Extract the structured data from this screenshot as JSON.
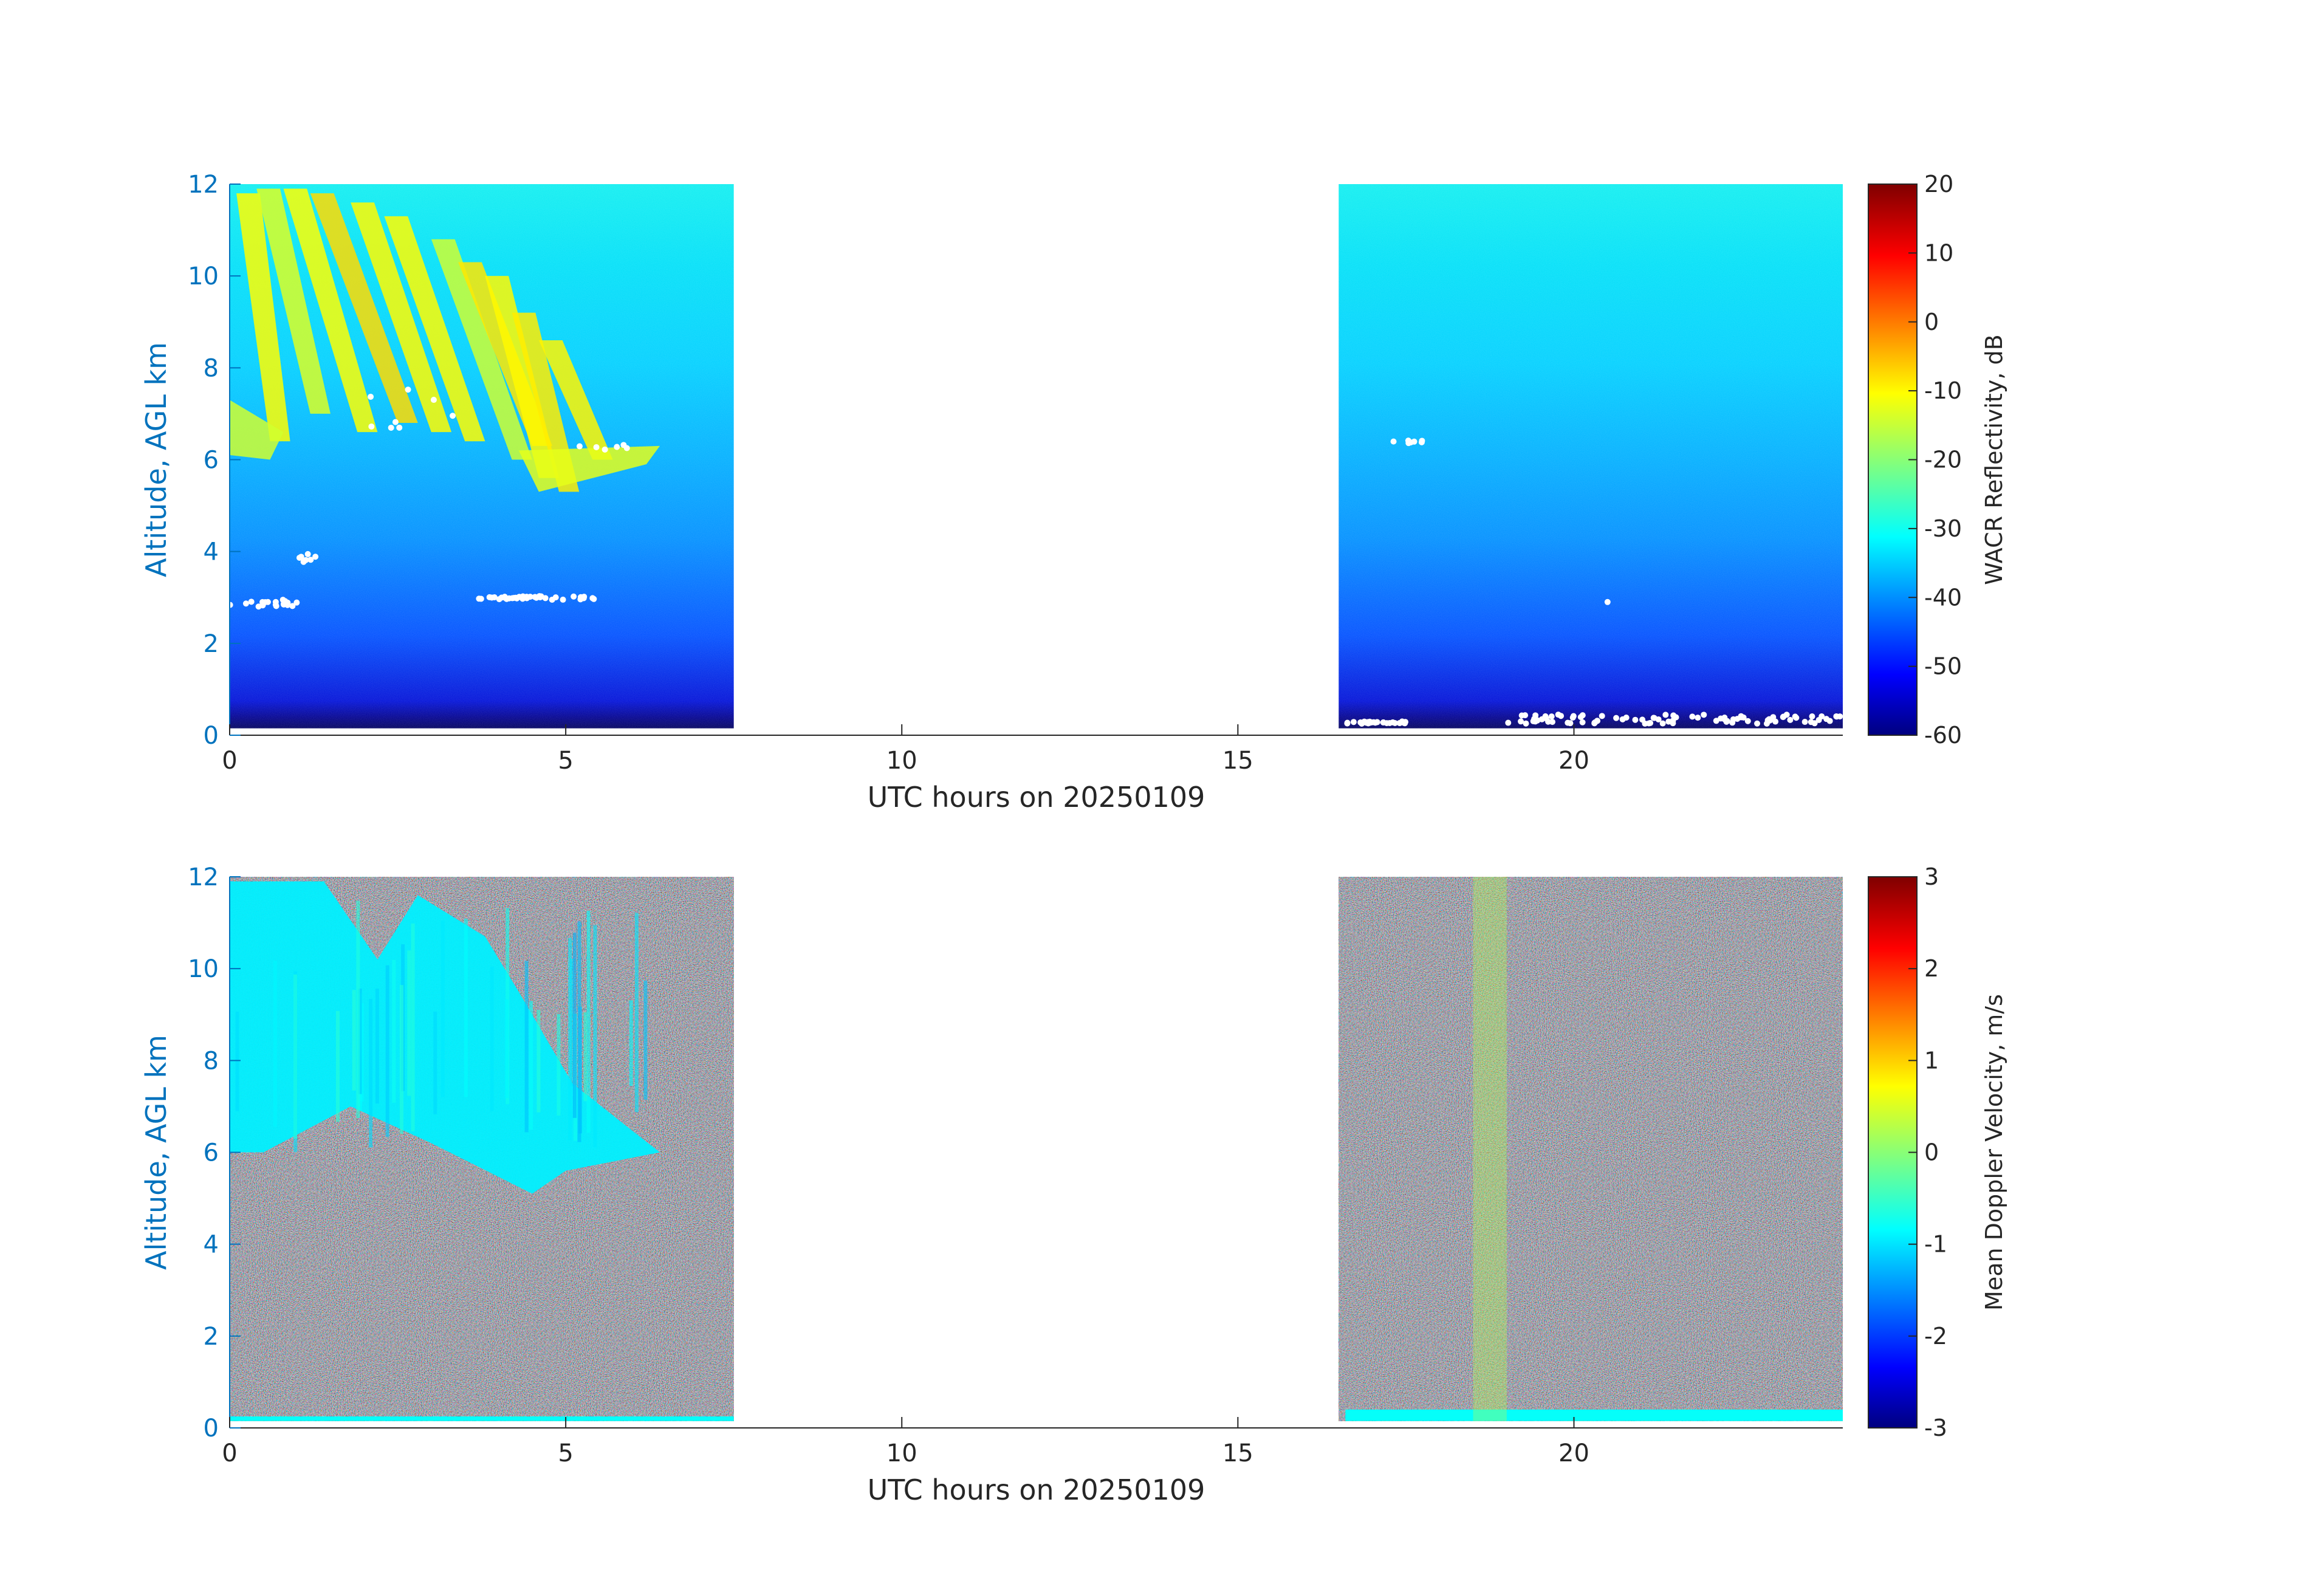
{
  "chart_data": [
    {
      "type": "heatmap",
      "panel": "top",
      "xlabel": "UTC hours on 20250109",
      "ylabel": "Altitude, AGL km",
      "xlim": [
        0,
        24
      ],
      "ylim": [
        0,
        12
      ],
      "xticks": [
        0,
        5,
        10,
        15,
        20
      ],
      "yticks": [
        0,
        2,
        4,
        6,
        8,
        10,
        12
      ],
      "colorbar": {
        "label": "WACR Reflectivity, dB",
        "range": [
          -60,
          20
        ],
        "ticks": [
          20,
          10,
          0,
          -10,
          -20,
          -30,
          -40,
          -50,
          -60
        ],
        "colormap": "jet"
      },
      "data_segments": [
        {
          "x_start": 0,
          "x_end": 7.5,
          "y_start": 0.15,
          "y_end": 12
        },
        {
          "x_start": 16.5,
          "x_end": 24,
          "y_start": 0.15,
          "y_end": 12
        }
      ],
      "background_profile": [
        {
          "altitude": 0.15,
          "value": -60
        },
        {
          "altitude": 0.6,
          "value": -55
        },
        {
          "altitude": 2,
          "value": -48
        },
        {
          "altitude": 4,
          "value": -42
        },
        {
          "altitude": 6,
          "value": -38
        },
        {
          "altitude": 8,
          "value": -34
        },
        {
          "altitude": 10,
          "value": -31
        },
        {
          "altitude": 12,
          "value": -29
        }
      ],
      "features": [
        {
          "description": "Cirrus fall streaks",
          "x_range": [
            0,
            6.4
          ],
          "y_range": [
            5.1,
            12
          ],
          "value_range": [
            -20,
            -8
          ]
        },
        {
          "description": "Thin cloud layer",
          "x_range": [
            0,
            0.8
          ],
          "y_range": [
            6,
            7.5
          ],
          "value_range": [
            -18,
            -12
          ]
        },
        {
          "description": "Low scattered cloud points",
          "x_range": [
            0,
            6
          ],
          "y_range": [
            2.8,
            4
          ],
          "value": "white"
        },
        {
          "description": "Near-surface layer",
          "x_range": [
            16.5,
            24
          ],
          "y_range": [
            0.15,
            0.5
          ],
          "value": "white"
        }
      ]
    },
    {
      "type": "heatmap",
      "panel": "bottom",
      "xlabel": "UTC hours on 20250109",
      "ylabel": "Altitude, AGL km",
      "xlim": [
        0,
        24
      ],
      "ylim": [
        0,
        12
      ],
      "xticks": [
        0,
        5,
        10,
        15,
        20
      ],
      "yticks": [
        0,
        2,
        4,
        6,
        8,
        10,
        12
      ],
      "colorbar": {
        "label": "Mean Doppler Velocity, m/s",
        "range": [
          -3,
          3
        ],
        "ticks": [
          3,
          2,
          1,
          0,
          -1,
          -2,
          -3
        ],
        "colormap": "jet"
      },
      "data_segments": [
        {
          "x_start": 0,
          "x_end": 7.5,
          "y_start": 0.15,
          "y_end": 12
        },
        {
          "x_start": 16.5,
          "x_end": 24,
          "y_start": 0.15,
          "y_end": 12
        }
      ],
      "background": "random noise spanning full velocity range",
      "features": [
        {
          "description": "Cloud region, downward velocity",
          "x_range": [
            0,
            6.4
          ],
          "y_range": [
            5.1,
            12
          ],
          "value_range": [
            -1.2,
            -0.5
          ]
        },
        {
          "description": "Near-surface layer",
          "x_range": [
            16.5,
            24
          ],
          "y_range": [
            0.15,
            0.4
          ],
          "value_range": [
            -1,
            -0.5
          ]
        },
        {
          "description": "Vertical banding of near-zero velocity",
          "x_range": [
            18.5,
            19
          ],
          "y_range": [
            0.15,
            12
          ],
          "value": 0
        }
      ]
    }
  ]
}
